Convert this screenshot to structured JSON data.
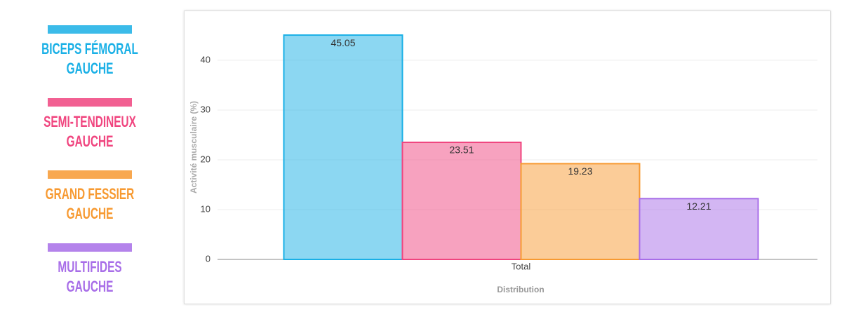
{
  "chart_data": {
    "type": "bar",
    "categories": [
      "Total"
    ],
    "series": [
      {
        "name": "BICEPS FÉMORAL GAUCHE",
        "color": "#1ab0e6",
        "values": [
          45.05
        ]
      },
      {
        "name": "SEMI-TENDINEUX GAUCHE",
        "color": "#f0457f",
        "values": [
          23.51
        ]
      },
      {
        "name": "GRAND FESSIER GAUCHE",
        "color": "#f79a32",
        "values": [
          19.23
        ]
      },
      {
        "name": "MULTIFIDES GAUCHE",
        "color": "#a86ee8",
        "values": [
          12.21
        ]
      }
    ],
    "ylim": [
      0,
      49
    ],
    "yticks": [
      0,
      10,
      20,
      30,
      40
    ],
    "grid": true,
    "ylabel": "Activité musculaire (%)",
    "xlabel": "Distribution"
  }
}
